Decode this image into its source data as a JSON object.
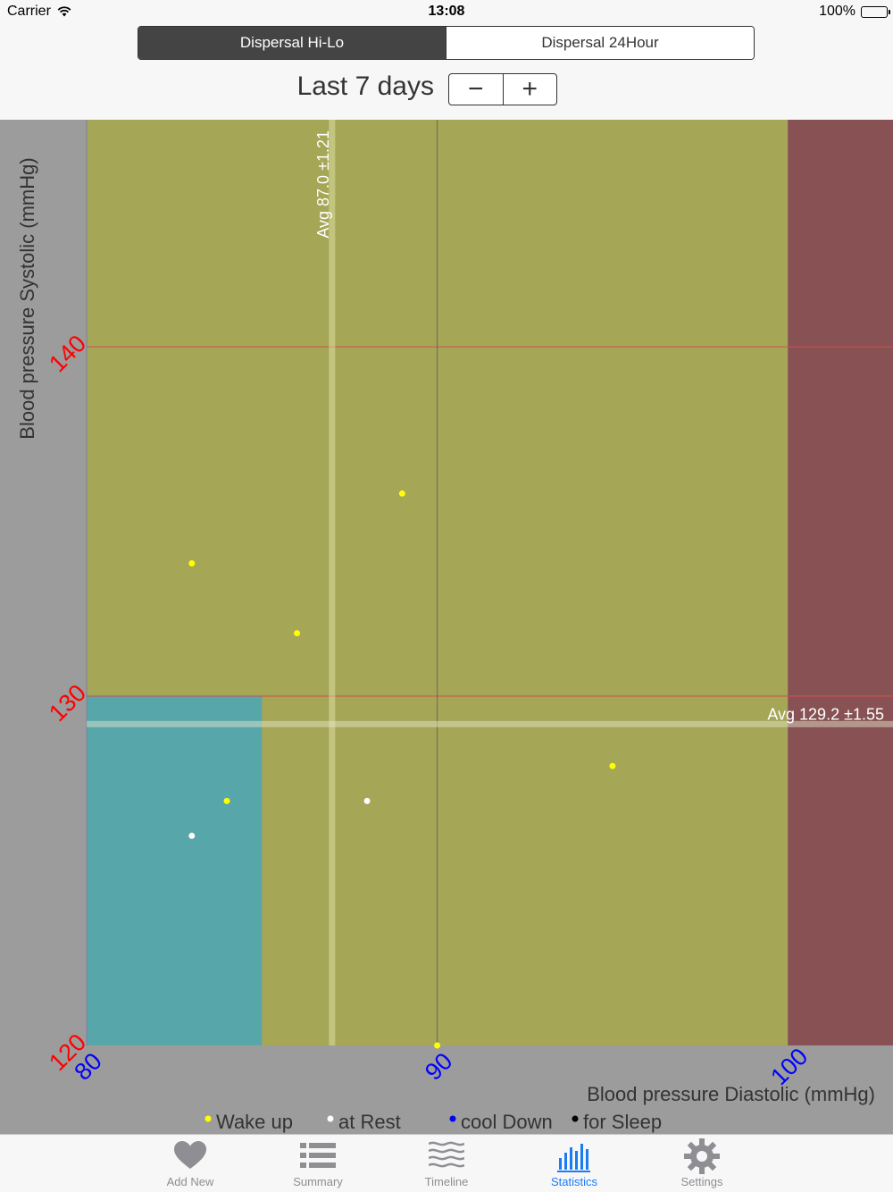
{
  "status_bar": {
    "carrier": "Carrier",
    "time": "13:08",
    "battery": "100%"
  },
  "segmented": {
    "options": [
      "Dispersal Hi-Lo",
      "Dispersal 24Hour"
    ],
    "selected": "Dispersal Hi-Lo"
  },
  "period": {
    "label": "Last 7 days",
    "minus": "−",
    "plus": "+"
  },
  "chart_data": {
    "type": "scatter",
    "xlabel": "Blood pressure Diastolic (mmHg)",
    "ylabel": "Blood pressure Systolic (mmHg)",
    "xlim": [
      80,
      103
    ],
    "ylim": [
      120,
      146.5
    ],
    "xticks": [
      80,
      90,
      100
    ],
    "yticks": [
      120,
      130,
      140
    ],
    "grid_x": [
      90
    ],
    "grid_y": [
      130,
      140
    ],
    "zones": [
      {
        "name": "normal",
        "x": [
          80,
          85
        ],
        "y": [
          120,
          130
        ],
        "color": "#57a6aa"
      },
      {
        "name": "high-normal",
        "x": [
          80,
          100
        ],
        "y": [
          120,
          146.5
        ],
        "color": "#a5a656"
      },
      {
        "name": "high",
        "x": [
          100,
          103
        ],
        "y": [
          120,
          146.5
        ],
        "color": "#885254"
      }
    ],
    "avg_x": {
      "value": 87.0,
      "sd": 1.21,
      "label": "Avg 87.0 ±1.21"
    },
    "avg_y": {
      "value": 129.2,
      "sd": 1.55,
      "label": "Avg 129.2 ±1.55"
    },
    "series": [
      {
        "name": "Wake up",
        "color": "#ffff00",
        "points": [
          [
            83,
            133.8
          ],
          [
            86,
            131.8
          ],
          [
            89,
            135.8
          ],
          [
            95,
            128
          ],
          [
            84,
            127
          ],
          [
            90,
            120
          ]
        ]
      },
      {
        "name": "at Rest",
        "color": "#ffffff",
        "points": [
          [
            83,
            126
          ],
          [
            88,
            127
          ]
        ]
      },
      {
        "name": "cool Down",
        "color": "#0000ff",
        "points": []
      },
      {
        "name": "for Sleep",
        "color": "#000000",
        "points": []
      }
    ],
    "legend_position": "bottom"
  },
  "tabs": [
    {
      "label": "Add New",
      "icon": "heart-icon"
    },
    {
      "label": "Summary",
      "icon": "list-icon"
    },
    {
      "label": "Timeline",
      "icon": "timeline-icon"
    },
    {
      "label": "Statistics",
      "icon": "statistics-icon"
    },
    {
      "label": "Settings",
      "icon": "gear-icon"
    }
  ],
  "active_tab": "Statistics",
  "colors": {
    "accent": "#1a7cf5",
    "tick_y": "#ff0000",
    "tick_x": "#0000ff",
    "tab_inactive": "#8e8e93"
  }
}
